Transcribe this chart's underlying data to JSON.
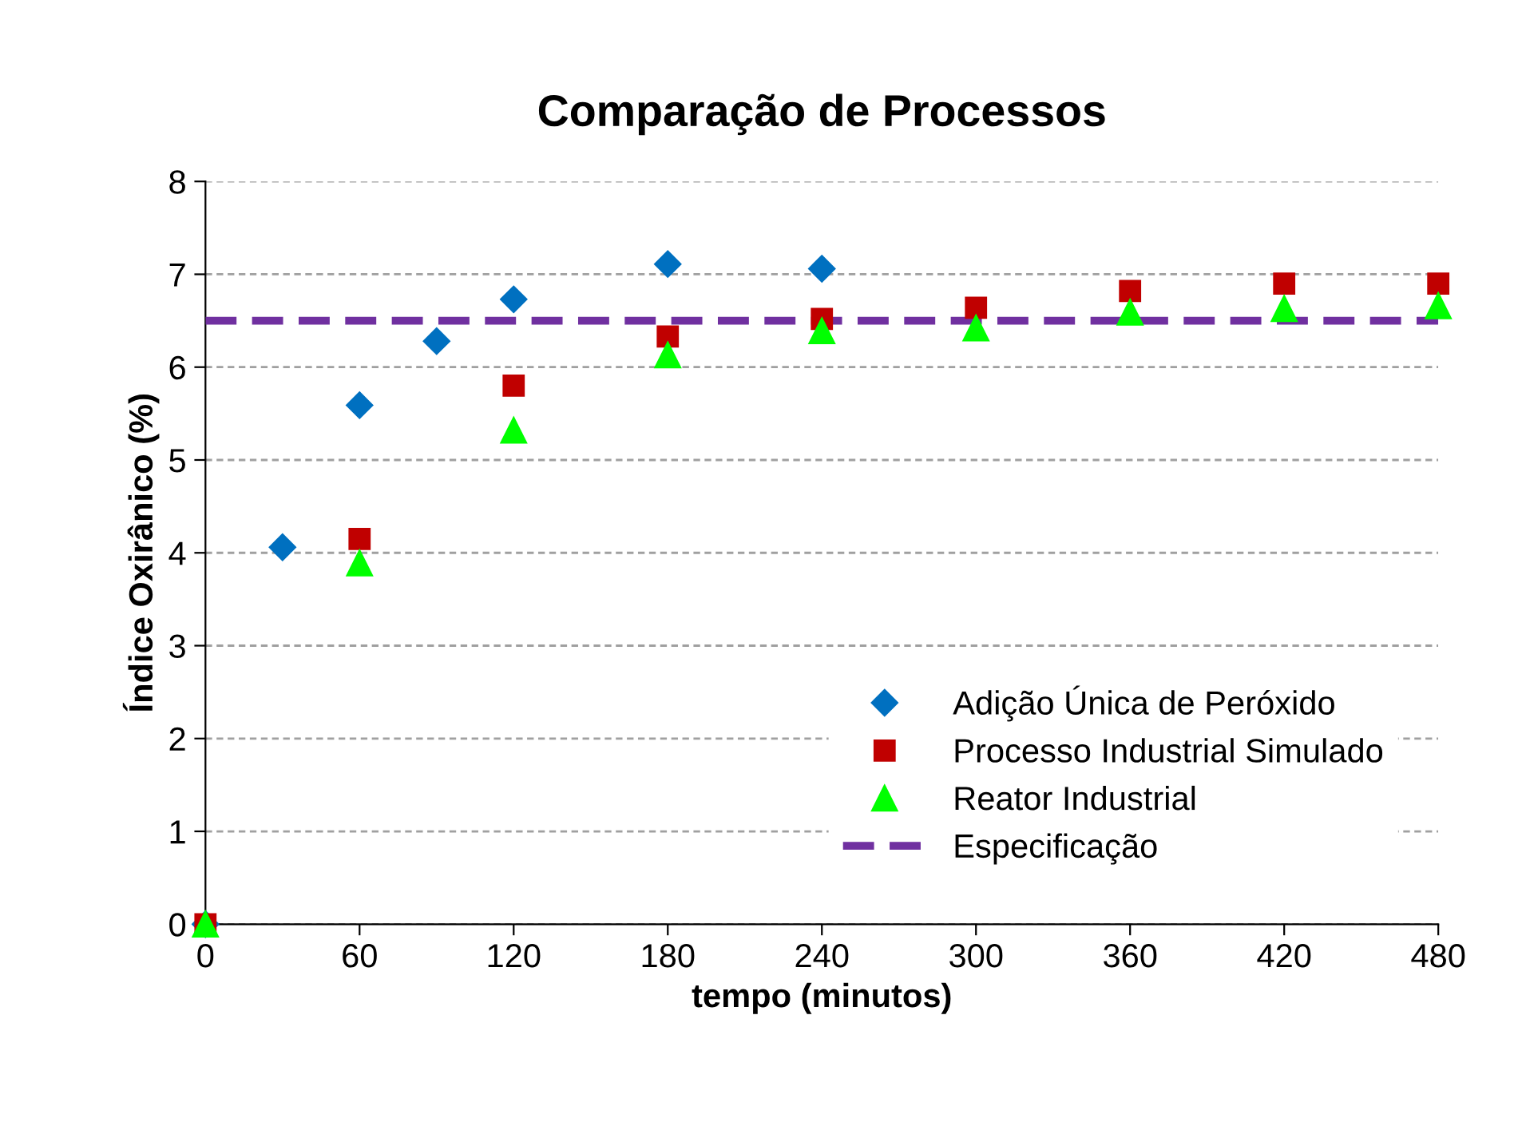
{
  "chart_data": {
    "type": "scatter",
    "title": "Comparação de Processos",
    "xlabel": "tempo (minutos)",
    "ylabel": "Índice Oxirânico (%)",
    "xlim": [
      0,
      480
    ],
    "xticks": [
      0,
      60,
      120,
      180,
      240,
      300,
      360,
      420,
      480
    ],
    "ylim": [
      0,
      8
    ],
    "yticks": [
      0,
      1,
      2,
      3,
      4,
      5,
      6,
      7,
      8
    ],
    "grid": "y",
    "legend": "lower right",
    "series": [
      {
        "name": "Adição Única de Peróxido",
        "color": "#0070c0",
        "marker": "diamond",
        "x": [
          0,
          30,
          60,
          90,
          120,
          180,
          240
        ],
        "values": [
          0,
          4.06,
          5.59,
          6.28,
          6.73,
          7.11,
          7.06
        ]
      },
      {
        "name": "Processo Industrial Simulado",
        "color": "#c00000",
        "marker": "square",
        "x": [
          0,
          60,
          120,
          180,
          240,
          300,
          360,
          420,
          480
        ],
        "values": [
          0,
          4.15,
          5.8,
          6.33,
          6.52,
          6.64,
          6.82,
          6.9,
          6.9
        ]
      },
      {
        "name": "Reator Industrial",
        "color": "#00ff00",
        "marker": "triangle",
        "x": [
          0,
          60,
          120,
          180,
          240,
          300,
          360,
          420,
          480
        ],
        "values": [
          0,
          3.89,
          5.32,
          6.13,
          6.39,
          6.42,
          6.59,
          6.63,
          6.66
        ]
      },
      {
        "name": "Especificação",
        "type": "line",
        "color": "#7030a0",
        "marker": "none",
        "line_style": "dashed",
        "x": [
          0,
          480
        ],
        "values": [
          6.5,
          6.5
        ]
      }
    ]
  }
}
